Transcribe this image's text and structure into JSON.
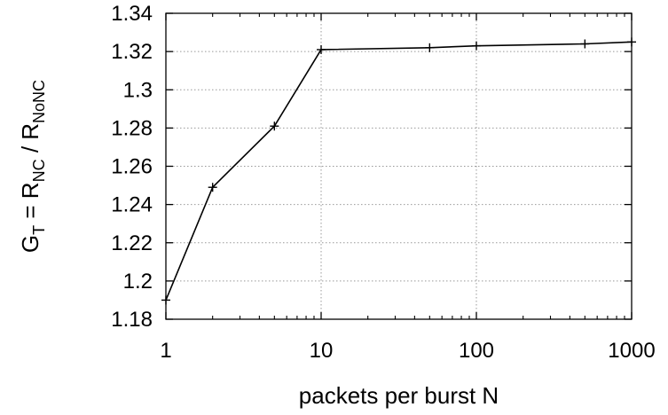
{
  "chart_data": {
    "type": "line",
    "xscale": "log",
    "xlim": [
      1,
      1000
    ],
    "ylim": [
      1.18,
      1.34
    ],
    "x_ticks": [
      "1",
      "10",
      "100",
      "1000"
    ],
    "y_ticks": [
      "1.18",
      "1.2",
      "1.22",
      "1.24",
      "1.26",
      "1.28",
      "1.3",
      "1.32",
      "1.34"
    ],
    "xlabel": "packets per burst N",
    "ylabel": {
      "main": "G",
      "main_sub": "T",
      "eq": " = R",
      "num_sub": "NC",
      "div": " / R",
      "den_sub": "NoNC"
    },
    "grid": true,
    "series": [
      {
        "x": [
          1,
          2,
          5,
          10,
          50,
          100,
          500,
          1000
        ],
        "y": [
          1.19,
          1.249,
          1.281,
          1.321,
          1.322,
          1.323,
          1.324,
          1.325
        ],
        "color": "#000000",
        "marker": "plus"
      }
    ]
  }
}
